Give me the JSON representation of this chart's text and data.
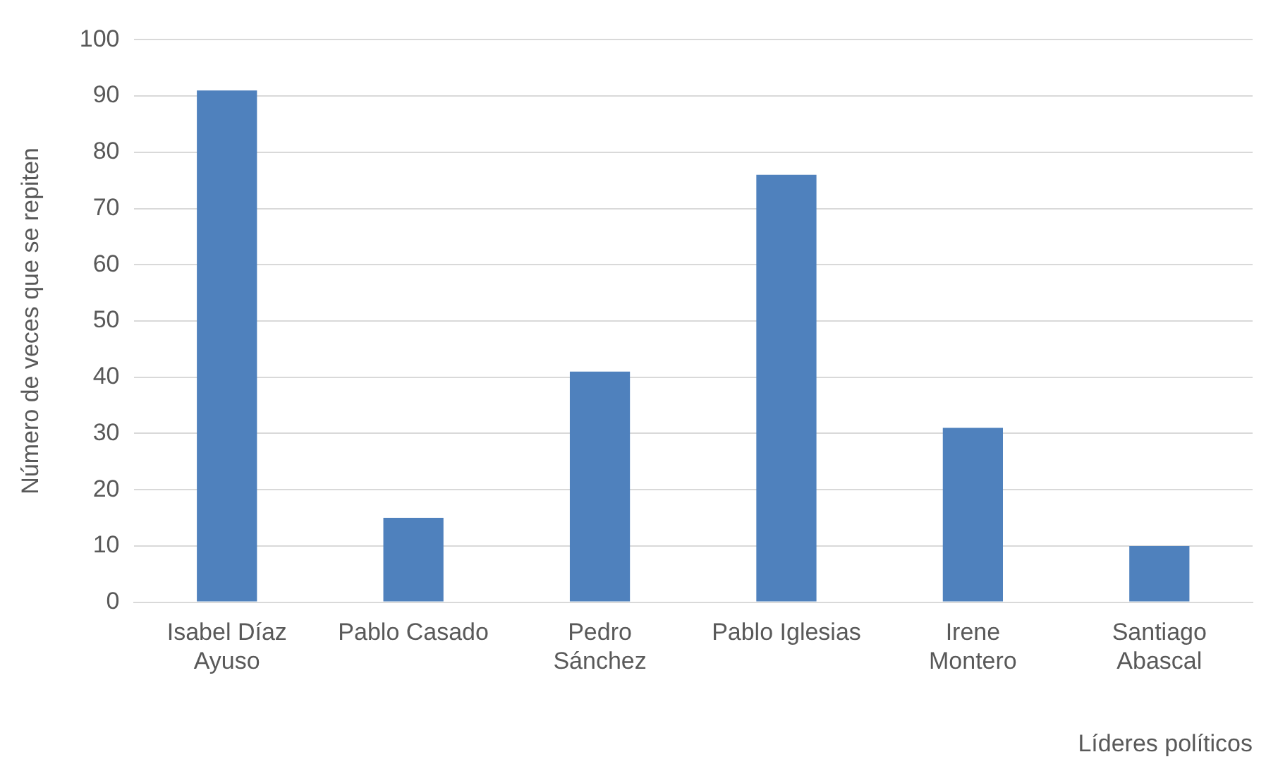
{
  "chart_data": {
    "type": "bar",
    "xlabel": "Líderes políticos",
    "ylabel": "Número de veces que se repiten",
    "categories": [
      "Isabel Díaz\nAyuso",
      "Pablo Casado",
      "Pedro\nSánchez",
      "Pablo Iglesias",
      "Irene\nMontero",
      "Santiago\nAbascal"
    ],
    "values": [
      91,
      15,
      41,
      76,
      31,
      10
    ],
    "color": "#4f81bd",
    "ylim": [
      0,
      100
    ],
    "yticks": [
      0,
      10,
      20,
      30,
      40,
      50,
      60,
      70,
      80,
      90,
      100
    ],
    "grid": "y",
    "legend": false
  }
}
